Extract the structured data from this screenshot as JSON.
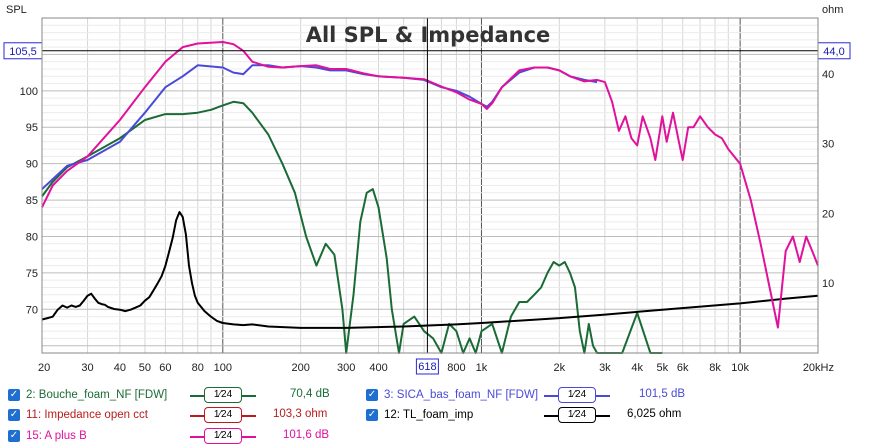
{
  "chart_data": {
    "type": "line",
    "title": "All SPL & Impedance",
    "ylabel_left": "SPL",
    "ylabel_right": "ohm",
    "xscale": "log",
    "xlim": [
      20,
      20000
    ],
    "ylim_left": [
      64,
      110
    ],
    "ylim_right": [
      0,
      48
    ],
    "grid": true,
    "x_ticks": [
      {
        "v": 20,
        "label": "20"
      },
      {
        "v": 30,
        "label": "30"
      },
      {
        "v": 40,
        "label": "40"
      },
      {
        "v": 50,
        "label": "50"
      },
      {
        "v": 60,
        "label": "60"
      },
      {
        "v": 80,
        "label": "80"
      },
      {
        "v": 100,
        "label": "100"
      },
      {
        "v": 200,
        "label": "200"
      },
      {
        "v": 300,
        "label": "300"
      },
      {
        "v": 400,
        "label": "400"
      },
      {
        "v": 800,
        "label": "800"
      },
      {
        "v": 1000,
        "label": "1k"
      },
      {
        "v": 2000,
        "label": "2k"
      },
      {
        "v": 3000,
        "label": "3k"
      },
      {
        "v": 4000,
        "label": "4k"
      },
      {
        "v": 5000,
        "label": "5k"
      },
      {
        "v": 6000,
        "label": "6k"
      },
      {
        "v": 8000,
        "label": "8k"
      },
      {
        "v": 10000,
        "label": "10k"
      },
      {
        "v": 20000,
        "label": "20kHz"
      }
    ],
    "y_ticks_left": [
      70,
      75,
      80,
      85,
      90,
      95,
      100
    ],
    "y_ticks_right": [
      10,
      20,
      30,
      40
    ],
    "cursor": {
      "x": 618,
      "x_label": "618",
      "y_left": 105.5,
      "y_left_label": "105,5",
      "y_right": 44.0,
      "y_right_label": "44,0"
    },
    "series": [
      {
        "name": "2: Bouche_foam_NF [FDW]",
        "color": "#1a6b35",
        "axis": "left",
        "smoothing": "1/24",
        "value_label": "70,4 dB",
        "x": [
          20,
          22,
          25,
          30,
          40,
          50,
          60,
          70,
          80,
          90,
          100,
          110,
          120,
          130,
          150,
          170,
          190,
          210,
          230,
          250,
          270,
          290,
          300,
          320,
          340,
          360,
          380,
          400,
          430,
          450,
          480,
          500,
          550,
          600,
          650,
          700,
          750,
          800,
          850,
          900,
          950,
          1000,
          1100,
          1200,
          1300,
          1400,
          1500,
          1600,
          1700,
          1800,
          1900,
          2000,
          2100,
          2200,
          2300,
          2400,
          2500,
          2600,
          2700,
          2800,
          3000,
          3500,
          4000,
          4500,
          5000
        ],
        "y": [
          85.5,
          87.5,
          89.5,
          91,
          93.5,
          96,
          96.8,
          96.8,
          97,
          97.4,
          98,
          98.5,
          98.3,
          97,
          94,
          90,
          86,
          80,
          76,
          79,
          77.5,
          70,
          64,
          72,
          82,
          86,
          86.5,
          84,
          77,
          70,
          63,
          68,
          69,
          67,
          66,
          64,
          68,
          67,
          64,
          66,
          64,
          67,
          68,
          64,
          69,
          71,
          71,
          72,
          73,
          75,
          76.5,
          76,
          76.5,
          75,
          73,
          67,
          64,
          68,
          65,
          64,
          64,
          64,
          69.5,
          64,
          64
        ]
      },
      {
        "name": "3: SICA_bas_foam_NF [FDW]",
        "color": "#4a4ad8",
        "axis": "left",
        "smoothing": "1/24",
        "value_label": "101,5 dB",
        "x": [
          20,
          25,
          30,
          40,
          50,
          60,
          70,
          80,
          100,
          110,
          120,
          130,
          150,
          170,
          200,
          230,
          260,
          300,
          350,
          400,
          500,
          600,
          700,
          800,
          900,
          1000,
          1050,
          1100,
          1200,
          1400,
          1600,
          1800,
          2000,
          2200,
          2500,
          2800
        ],
        "y": [
          86.5,
          89.7,
          90.5,
          93,
          97,
          100.5,
          102,
          103.5,
          103.2,
          102.5,
          102.3,
          103.5,
          103.5,
          103.2,
          103.4,
          103.2,
          102.8,
          102.8,
          102.3,
          102,
          101.8,
          101.5,
          100.5,
          100,
          99.2,
          98.2,
          97.8,
          98.5,
          100.5,
          102.5,
          103.2,
          103.2,
          102.8,
          102,
          101.5,
          101.2
        ]
      },
      {
        "name": "11: Impedance open cct",
        "color": "#b81c1c",
        "axis": "right",
        "smoothing": "1/24",
        "value_label": "103,3 ohm",
        "x": [],
        "y": []
      },
      {
        "name": "12: TL_foam_imp",
        "color": "#000000",
        "axis": "right",
        "smoothing": "1/24",
        "value_label": "6,025 ohm",
        "x": [
          20,
          21,
          22,
          23,
          24,
          25,
          26,
          27,
          28,
          29,
          30,
          31,
          32,
          33,
          34,
          35,
          36,
          38,
          40,
          42,
          44,
          46,
          48,
          50,
          52,
          54,
          56,
          58,
          60,
          62,
          64,
          66,
          68,
          70,
          72,
          74,
          76,
          78,
          80,
          85,
          90,
          95,
          100,
          110,
          120,
          130,
          150,
          200,
          300,
          500,
          800,
          1000,
          2000,
          3000,
          5000,
          10000,
          15000,
          20000
        ],
        "y": [
          4.8,
          5.0,
          5.2,
          6.2,
          6.8,
          6.5,
          6.8,
          6.6,
          6.8,
          7.5,
          8.2,
          8.5,
          7.8,
          7.2,
          7.0,
          6.9,
          6.6,
          6.3,
          6.2,
          6.0,
          6.2,
          6.5,
          6.8,
          7.5,
          8.0,
          9.0,
          10.0,
          11.0,
          12.5,
          14.5,
          16.5,
          19.0,
          20.2,
          19.5,
          17.0,
          12.5,
          10.0,
          8.2,
          7.2,
          6.0,
          5.2,
          4.6,
          4.3,
          4.1,
          4.0,
          4.1,
          3.8,
          3.6,
          3.6,
          3.8,
          4.1,
          4.3,
          5.0,
          5.5,
          6.2,
          7.1,
          7.8,
          8.2
        ]
      },
      {
        "name": "15: A plus B",
        "color": "#e0129c",
        "axis": "left",
        "smoothing": "1/24",
        "value_label": "101,6 dB",
        "x": [
          20,
          22,
          25,
          30,
          40,
          50,
          60,
          70,
          80,
          100,
          110,
          120,
          130,
          150,
          170,
          200,
          230,
          260,
          300,
          350,
          400,
          500,
          600,
          700,
          800,
          900,
          1000,
          1050,
          1100,
          1200,
          1400,
          1600,
          1800,
          2000,
          2200,
          2500,
          2800,
          3000,
          3200,
          3400,
          3600,
          3800,
          4000,
          4200,
          4500,
          4700,
          5000,
          5200,
          5500,
          5800,
          6000,
          6300,
          6600,
          7000,
          7500,
          8000,
          8500,
          9000,
          10000,
          11000,
          12000,
          13000,
          14000,
          15000,
          16000,
          17000,
          18000,
          19000,
          20000
        ],
        "y": [
          84,
          87,
          89,
          91,
          96,
          100.5,
          104,
          106,
          106.5,
          106.7,
          106.4,
          105.5,
          104,
          103.3,
          103.2,
          103.4,
          103.5,
          103,
          103,
          102.4,
          102,
          101.8,
          101.6,
          100.6,
          99.8,
          98.8,
          98.2,
          97.5,
          98.3,
          100.5,
          102.8,
          103.2,
          103.2,
          102.8,
          102,
          101.3,
          101.5,
          101.2,
          98.5,
          94.5,
          96.5,
          93.5,
          92.5,
          96.5,
          93.5,
          90.5,
          96.5,
          93,
          97,
          93,
          90.5,
          95,
          95,
          96.5,
          95,
          94,
          93.5,
          92,
          90,
          85,
          79,
          73,
          67.5,
          78,
          80,
          76.5,
          80,
          78,
          76
        ]
      }
    ]
  },
  "legend": {
    "items": [
      {
        "name": "2: Bouche_foam_NF [FDW]",
        "smoothing": "1⁄24",
        "value": "70,4 dB",
        "color": "#1a6b35",
        "text_color": "#1a6b35",
        "checked": true
      },
      {
        "name": "3: SICA_bas_foam_NF [FDW]",
        "smoothing": "1⁄24",
        "value": "101,5 dB",
        "color": "#4a4ad8",
        "text_color": "#4a4ad8",
        "checked": true
      },
      {
        "name": "11: Impedance open cct",
        "smoothing": "1⁄24",
        "value": "103,3 ohm",
        "color": "#b81c1c",
        "text_color": "#b81c1c",
        "checked": true
      },
      {
        "name": "12: TL_foam_imp",
        "smoothing": "1⁄24",
        "value": "6,025 ohm",
        "color": "#000000",
        "text_color": "#000000",
        "checked": true
      },
      {
        "name": "15: A plus B",
        "smoothing": "1⁄24",
        "value": "101,6 dB",
        "color": "#e0129c",
        "text_color": "#e0129c",
        "checked": true
      }
    ]
  }
}
